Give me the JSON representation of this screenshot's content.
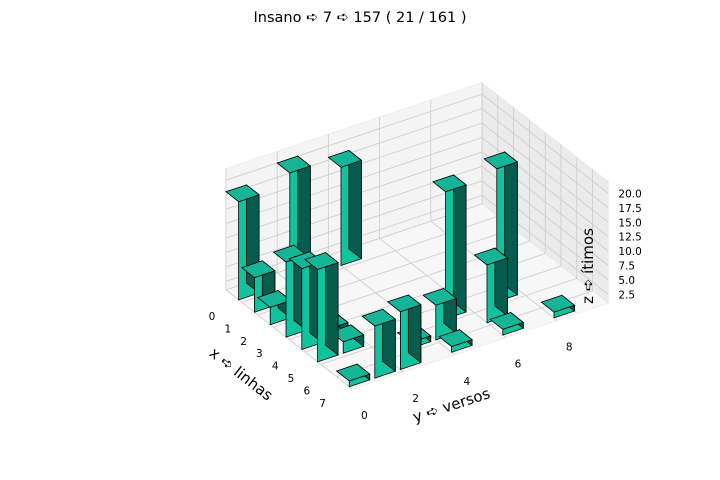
{
  "chart_data": {
    "type": "bar3d",
    "title": "Insano ➪ 7 ➪ 157 ( 21 / 161 )",
    "xlabel": "x ➪ linhas",
    "ylabel": "y ➪ versos",
    "zlabel": "z ➪ ítimos",
    "x_ticks": [
      "0",
      "1",
      "2",
      "3",
      "4",
      "5",
      "6",
      "7"
    ],
    "y_ticks": [
      "0",
      "2",
      "4",
      "6",
      "8"
    ],
    "z_ticks": [
      "2.5",
      "5.0",
      "7.5",
      "10.0",
      "12.5",
      "15.0",
      "17.5",
      "20.0"
    ],
    "xlim": [
      0,
      8
    ],
    "ylim": [
      0,
      10
    ],
    "zlim": [
      1,
      22
    ],
    "grid": true,
    "colors": {
      "bar_top": "#17b597",
      "bar_front": "#10c39f",
      "bar_side": "#075d4d",
      "edge": "#000000",
      "pane_back": "#f4f4f4",
      "pane_side": "#ebebeb",
      "pane_floor": "#f7f7f7",
      "grid": "#cccccc"
    },
    "bars": [
      {
        "x": 0,
        "y": 0,
        "z": 18
      },
      {
        "x": 0,
        "y": 2,
        "z": 20
      },
      {
        "x": 0,
        "y": 4,
        "z": 18
      },
      {
        "x": 1,
        "y": 0,
        "z": 7
      },
      {
        "x": 2,
        "y": 0,
        "z": 4
      },
      {
        "x": 3,
        "y": 0,
        "z": 14
      },
      {
        "x": 4,
        "y": 0,
        "z": 15
      },
      {
        "x": 4,
        "y": 1,
        "z": 3
      },
      {
        "x": 5,
        "y": 0,
        "z": 17
      },
      {
        "x": 5,
        "y": 1,
        "z": 3
      },
      {
        "x": 5,
        "y": 5,
        "z": 23
      },
      {
        "x": 5,
        "y": 7,
        "z": 24
      },
      {
        "x": 6,
        "y": 3,
        "z": 2
      },
      {
        "x": 6,
        "y": 4,
        "z": 7
      },
      {
        "x": 6,
        "y": 6,
        "z": 11
      },
      {
        "x": 7,
        "y": 0,
        "z": 2
      },
      {
        "x": 7,
        "y": 1,
        "z": 10
      },
      {
        "x": 7,
        "y": 2,
        "z": 11
      },
      {
        "x": 7,
        "y": 4,
        "z": 2
      },
      {
        "x": 7,
        "y": 6,
        "z": 2
      },
      {
        "x": 7,
        "y": 8,
        "z": 2
      }
    ]
  }
}
